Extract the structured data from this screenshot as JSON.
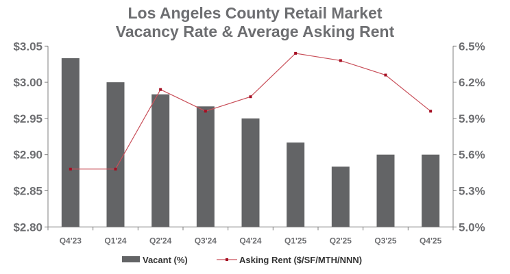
{
  "chart_data": {
    "type": "bar+line",
    "title": [
      "Los Angeles County Retail Market",
      "Vacancy Rate & Average Asking Rent"
    ],
    "categories": [
      "Q4'23",
      "Q1'24",
      "Q2'24",
      "Q3'24",
      "Q4'24",
      "Q1'25",
      "Q2'25",
      "Q3'25",
      "Q4'25"
    ],
    "series": [
      {
        "name": "Vacant (%)",
        "type": "bar",
        "axis": "right",
        "color": "#636466",
        "values": [
          6.4,
          6.2,
          6.1,
          6.0,
          5.9,
          5.7,
          5.5,
          5.6,
          5.6
        ]
      },
      {
        "name": "Asking Rent ($/SF/MTH/NNN)",
        "type": "line",
        "axis": "left",
        "color": "#a50f23",
        "values": [
          2.88,
          2.88,
          2.99,
          2.96,
          2.98,
          3.04,
          3.03,
          3.01,
          2.96
        ]
      }
    ],
    "left_axis": {
      "ylim": [
        2.8,
        3.05
      ],
      "ticks": [
        "$2.80",
        "$2.85",
        "$2.90",
        "$2.95",
        "$3.00",
        "$3.05"
      ]
    },
    "right_axis": {
      "ylim": [
        5.0,
        6.5
      ],
      "ticks": [
        "5.0%",
        "5.3%",
        "5.6%",
        "5.9%",
        "6.2%",
        "6.5%"
      ]
    },
    "grid": false,
    "legend": "bottom"
  }
}
